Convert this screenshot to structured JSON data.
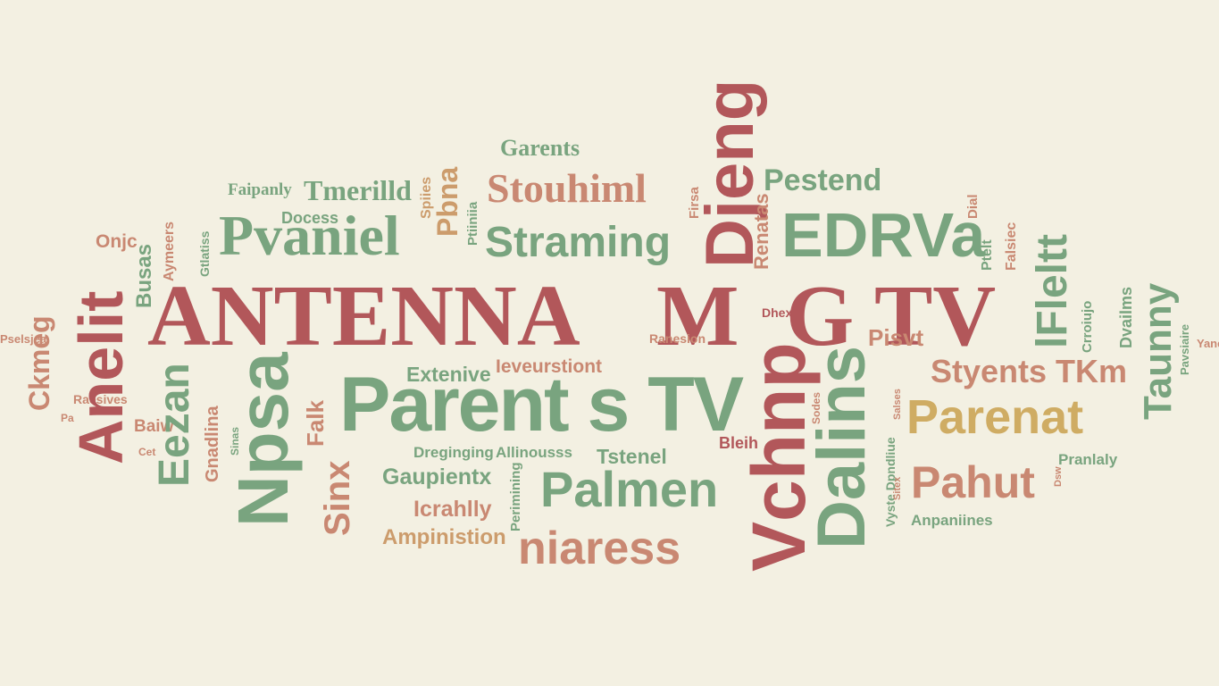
{
  "palette": {
    "background": "#f3f0e2",
    "red": "#b2575a",
    "green": "#79a47f",
    "tan": "#cc9c6c",
    "gold": "#cfac63",
    "rose": "#c98872"
  },
  "words": {
    "antenna": "ANTENNA",
    "m": "M",
    "gtv": "G TV",
    "parents_tv": "Parent s TV",
    "stouhiml": "Stouhiml",
    "stramings": "Straming",
    "pvaniel": "Pvaniel",
    "edrva": "EDRVa",
    "palmen": "Palmen",
    "niaress": "niaress",
    "parenat": "Parenat",
    "pahut": "Pahut",
    "styents_tkm": "Styents TKm",
    "garents": "Garents",
    "pestend": "Pestend",
    "fainpanly": "Faipanly",
    "tmerilla": "Tmerilld",
    "docess": "Docess",
    "onjc": "Onjc",
    "extenive": "Extenive",
    "ieveurstiont": "Ieveurstiont",
    "tstenel": "Tstenel",
    "gaupientx": "Gaupientx",
    "icrahlly": "Icrahlly",
    "ampinistion": "Ampinistion",
    "dreginging": "Dreginging",
    "allinousss": "Allinousss",
    "pranlaly": "Pranlaly",
    "anpaniines": "Anpaniines",
    "dhex": "Dhex",
    "ranestion": "Ranesion",
    "pisvt": "Pisvt",
    "baiw": "Baiw",
    "ramwesives": "Raesives",
    "ct": "Cet",
    "pa": "Pa",
    "pselsjea": "Pselsjea",
    "bleih": "Bleih",
    "djeng": "Djeng",
    "vchnp": "Vchnp",
    "dalins": "Dalins",
    "fieltt": "lFleltt",
    "taunny": "Taunny",
    "anelit": "Anelit",
    "npsa": "Npsa",
    "eezan": "Eezan",
    "ckmeg": "Ckmeg",
    "busas": "Busas",
    "aymeers": "Aymeers",
    "gtlatiss": "Gtlatiss",
    "pbna": "Pbna",
    "ptiiniia": "Ptiiniia",
    "ppiines": "Spiies",
    "firsa": "Firsa",
    "renatas": "Renatas",
    "dial": "Dial",
    "falsiec": "Falsiec",
    "ptelt": "Ptelt",
    "pisvt_b": "Sitex",
    "sinx": "Sinx",
    "faik": "Falk",
    "perimining": "Perimining",
    "sodes": "Sodes",
    "vyste_dpndliue": "Vyste Dpndliue",
    "crroiujo": "Crroiujo",
    "dvailms": "Dvailms",
    "pavsiaire": "Pavsiaire",
    "yane": "Yane",
    "gnadlina": "Gnadlina",
    "sinas": "Sinas",
    "dsw": "Dsw",
    "salses": "Salses"
  }
}
